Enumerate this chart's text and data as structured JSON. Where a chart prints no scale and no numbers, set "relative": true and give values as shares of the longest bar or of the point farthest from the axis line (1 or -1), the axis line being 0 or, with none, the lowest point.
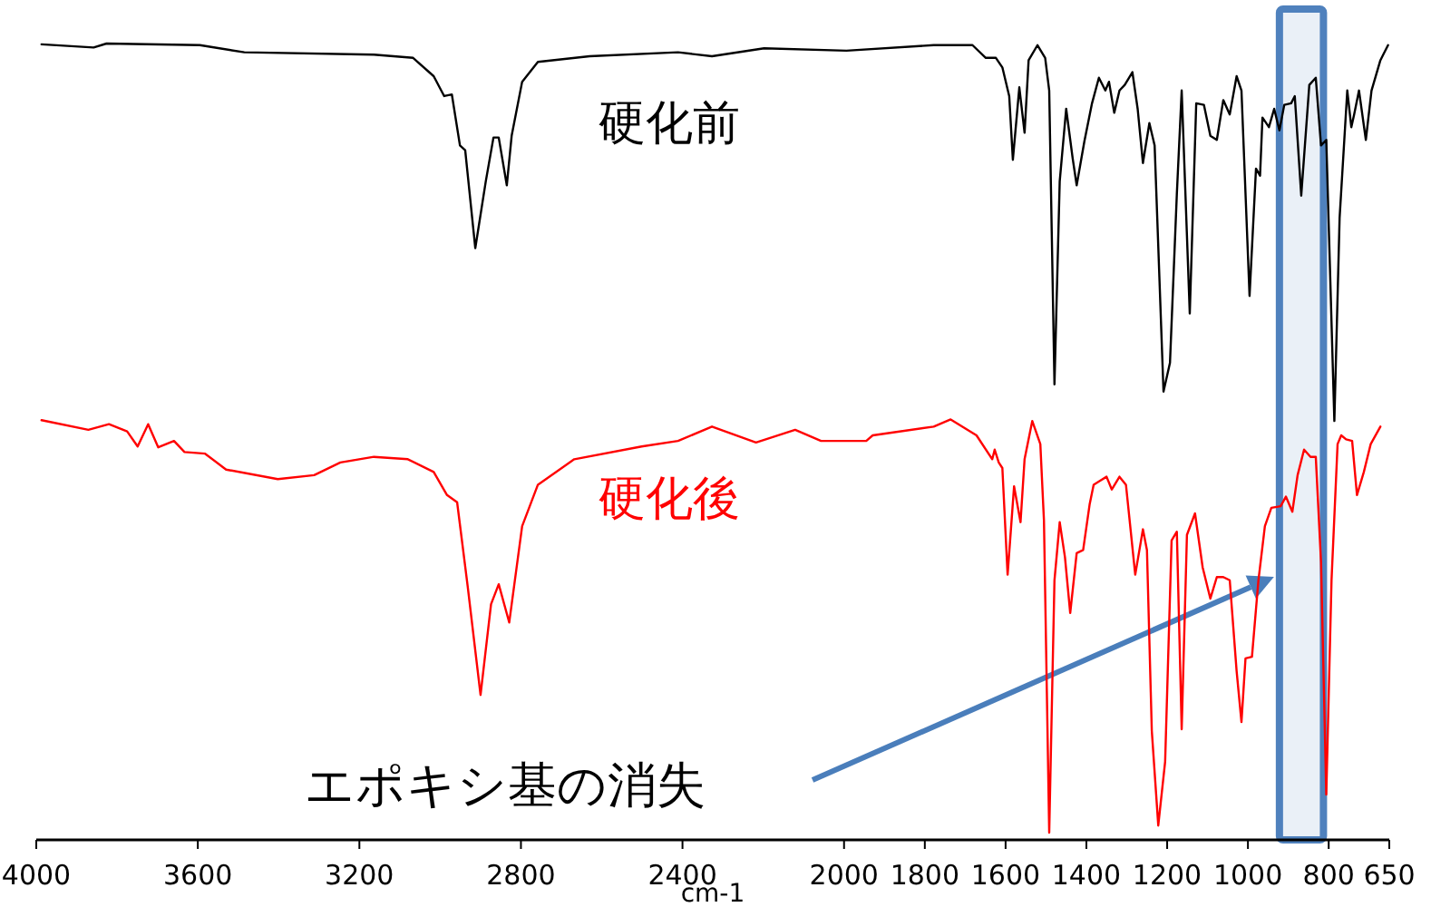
{
  "chart_data": {
    "type": "line",
    "xlabel": "cm-1",
    "relative": true,
    "xlim": [
      4000,
      650
    ],
    "xticks": [
      4000,
      3600,
      3200,
      2800,
      2400,
      2000,
      1800,
      1600,
      1400,
      1200,
      1000,
      800,
      650
    ],
    "bands": [
      {
        "axis": "x",
        "from": 922,
        "to": 813,
        "color": "#4f81bd"
      }
    ],
    "annotations": [
      "エポキシ基の消失"
    ],
    "series": [
      {
        "name": "硬化前",
        "color": "#000000",
        "x": [
          3987,
          3858,
          3826,
          3595,
          3485,
          3164,
          3067,
          3016,
          2990,
          2971,
          2951,
          2938,
          2913,
          2887,
          2868,
          2855,
          2835,
          2823,
          2797,
          2758,
          2630,
          2411,
          2327,
          2198,
          1994,
          1778,
          1682,
          1649,
          1624,
          1608,
          1591,
          1582,
          1566,
          1553,
          1543,
          1521,
          1502,
          1492,
          1479,
          1466,
          1450,
          1434,
          1424,
          1405,
          1386,
          1369,
          1353,
          1344,
          1331,
          1318,
          1305,
          1286,
          1273,
          1260,
          1244,
          1231,
          1209,
          1193,
          1176,
          1164,
          1144,
          1128,
          1109,
          1093,
          1077,
          1061,
          1045,
          1028,
          1016,
          996,
          980,
          970,
          964,
          948,
          935,
          922,
          910,
          893,
          884,
          868,
          848,
          832,
          819,
          806,
          786,
          773,
          754,
          744,
          737,
          725,
          708,
          694,
          672,
          665,
          653
        ],
        "values": [
          0.999,
          0.995,
          1.0,
          0.998,
          0.989,
          0.986,
          0.982,
          0.959,
          0.934,
          0.936,
          0.872,
          0.866,
          0.743,
          0.827,
          0.882,
          0.882,
          0.822,
          0.884,
          0.952,
          0.977,
          0.984,
          0.989,
          0.984,
          0.994,
          0.991,
          0.998,
          0.998,
          0.982,
          0.982,
          0.97,
          0.934,
          0.854,
          0.945,
          0.888,
          0.979,
          0.998,
          0.982,
          0.941,
          0.572,
          0.827,
          0.918,
          0.856,
          0.822,
          0.877,
          0.925,
          0.957,
          0.941,
          0.952,
          0.913,
          0.941,
          0.948,
          0.964,
          0.918,
          0.85,
          0.9,
          0.872,
          0.563,
          0.599,
          0.811,
          0.941,
          0.661,
          0.925,
          0.923,
          0.884,
          0.879,
          0.929,
          0.911,
          0.959,
          0.941,
          0.683,
          0.843,
          0.834,
          0.907,
          0.895,
          0.918,
          0.891,
          0.923,
          0.925,
          0.934,
          0.809,
          0.948,
          0.957,
          0.872,
          0.879,
          0.526,
          0.781,
          0.941,
          0.895,
          0.911,
          0.941,
          0.879,
          0.941,
          0.979,
          0.986,
          0.998
        ]
      },
      {
        "name": "硬化後",
        "color": "#ff0000",
        "x": [
          3987,
          3871,
          3820,
          3775,
          3749,
          3723,
          3698,
          3659,
          3633,
          3582,
          3530,
          3402,
          3312,
          3247,
          3164,
          3080,
          3016,
          2983,
          2958,
          2932,
          2900,
          2874,
          2855,
          2829,
          2797,
          2758,
          2668,
          2501,
          2411,
          2327,
          2218,
          2121,
          2057,
          1945,
          1929,
          1778,
          1736,
          1672,
          1633,
          1627,
          1617,
          1608,
          1595,
          1579,
          1563,
          1553,
          1534,
          1514,
          1505,
          1492,
          1479,
          1466,
          1453,
          1440,
          1424,
          1408,
          1392,
          1382,
          1366,
          1350,
          1337,
          1318,
          1302,
          1279,
          1260,
          1250,
          1238,
          1222,
          1205,
          1189,
          1176,
          1164,
          1151,
          1131,
          1112,
          1093,
          1077,
          1061,
          1045,
          1028,
          1016,
          1006,
          990,
          974,
          958,
          942,
          919,
          906,
          890,
          877,
          861,
          845,
          832,
          819,
          806,
          793,
          778,
          769,
          757,
          742,
          730,
          713,
          696,
          672
        ],
        "values": [
          0.527,
          0.515,
          0.522,
          0.513,
          0.494,
          0.522,
          0.493,
          0.501,
          0.487,
          0.485,
          0.465,
          0.453,
          0.458,
          0.474,
          0.481,
          0.478,
          0.462,
          0.433,
          0.424,
          0.319,
          0.182,
          0.296,
          0.321,
          0.273,
          0.394,
          0.446,
          0.478,
          0.494,
          0.501,
          0.519,
          0.499,
          0.515,
          0.501,
          0.501,
          0.508,
          0.519,
          0.528,
          0.508,
          0.478,
          0.49,
          0.474,
          0.467,
          0.333,
          0.444,
          0.399,
          0.478,
          0.526,
          0.497,
          0.401,
          0.009,
          0.326,
          0.399,
          0.355,
          0.285,
          0.36,
          0.364,
          0.421,
          0.446,
          0.451,
          0.456,
          0.44,
          0.456,
          0.446,
          0.333,
          0.39,
          0.364,
          0.137,
          0.018,
          0.098,
          0.376,
          0.387,
          0.139,
          0.383,
          0.41,
          0.342,
          0.303,
          0.33,
          0.33,
          0.326,
          0.212,
          0.148,
          0.228,
          0.23,
          0.326,
          0.394,
          0.417,
          0.419,
          0.431,
          0.412,
          0.458,
          0.49,
          0.481,
          0.481,
          0.349,
          0.057,
          0.326,
          0.497,
          0.508,
          0.503,
          0.501,
          0.433,
          0.462,
          0.497,
          0.519
        ]
      }
    ]
  }
}
